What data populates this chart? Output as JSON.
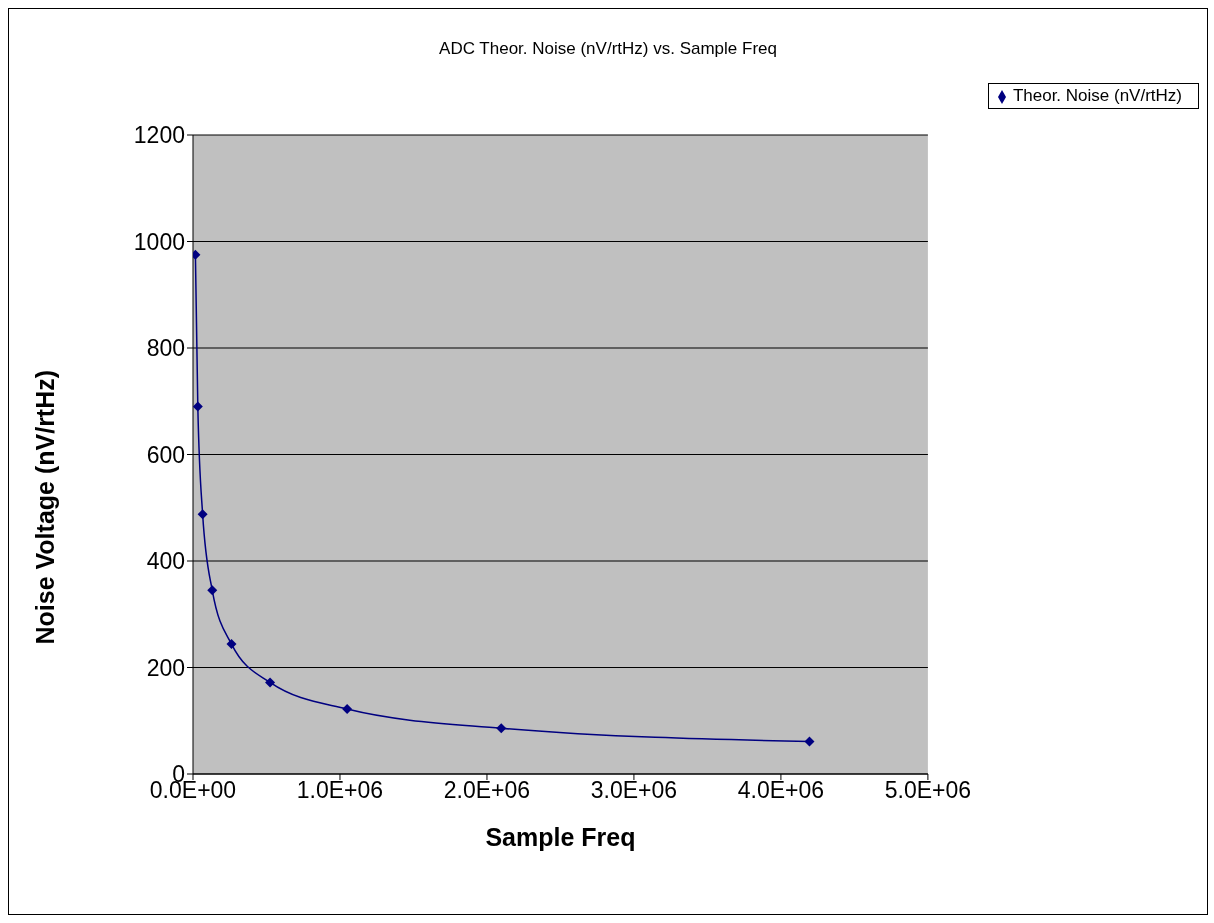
{
  "chart_data": {
    "type": "line",
    "title": "ADC Theor. Noise (nV/rtHz) vs. Sample Freq",
    "xlabel": "Sample Freq",
    "ylabel": "Noise Voltage (nV/rtHz)",
    "x": [
      16384,
      32768,
      65536,
      131072,
      262144,
      524288,
      1048576,
      2097152,
      4194304
    ],
    "series": [
      {
        "name": "Theor. Noise (nV/rtHz)",
        "color": "#000080",
        "values": [
          975,
          690,
          488,
          345,
          244,
          172,
          122,
          86,
          61
        ]
      }
    ],
    "xlim": [
      0,
      5000000
    ],
    "xticks": [
      {
        "value": 0,
        "label": "0.0E+00"
      },
      {
        "value": 1000000,
        "label": "1.0E+06"
      },
      {
        "value": 2000000,
        "label": "2.0E+06"
      },
      {
        "value": 3000000,
        "label": "3.0E+06"
      },
      {
        "value": 4000000,
        "label": "4.0E+06"
      },
      {
        "value": 5000000,
        "label": "5.0E+06"
      }
    ],
    "ylim": [
      0,
      1200
    ],
    "yticks": [
      0,
      200,
      400,
      600,
      800,
      1000,
      1200
    ],
    "grid": "y",
    "legend": "top right",
    "marker": "diamond",
    "line_style": "solid"
  }
}
